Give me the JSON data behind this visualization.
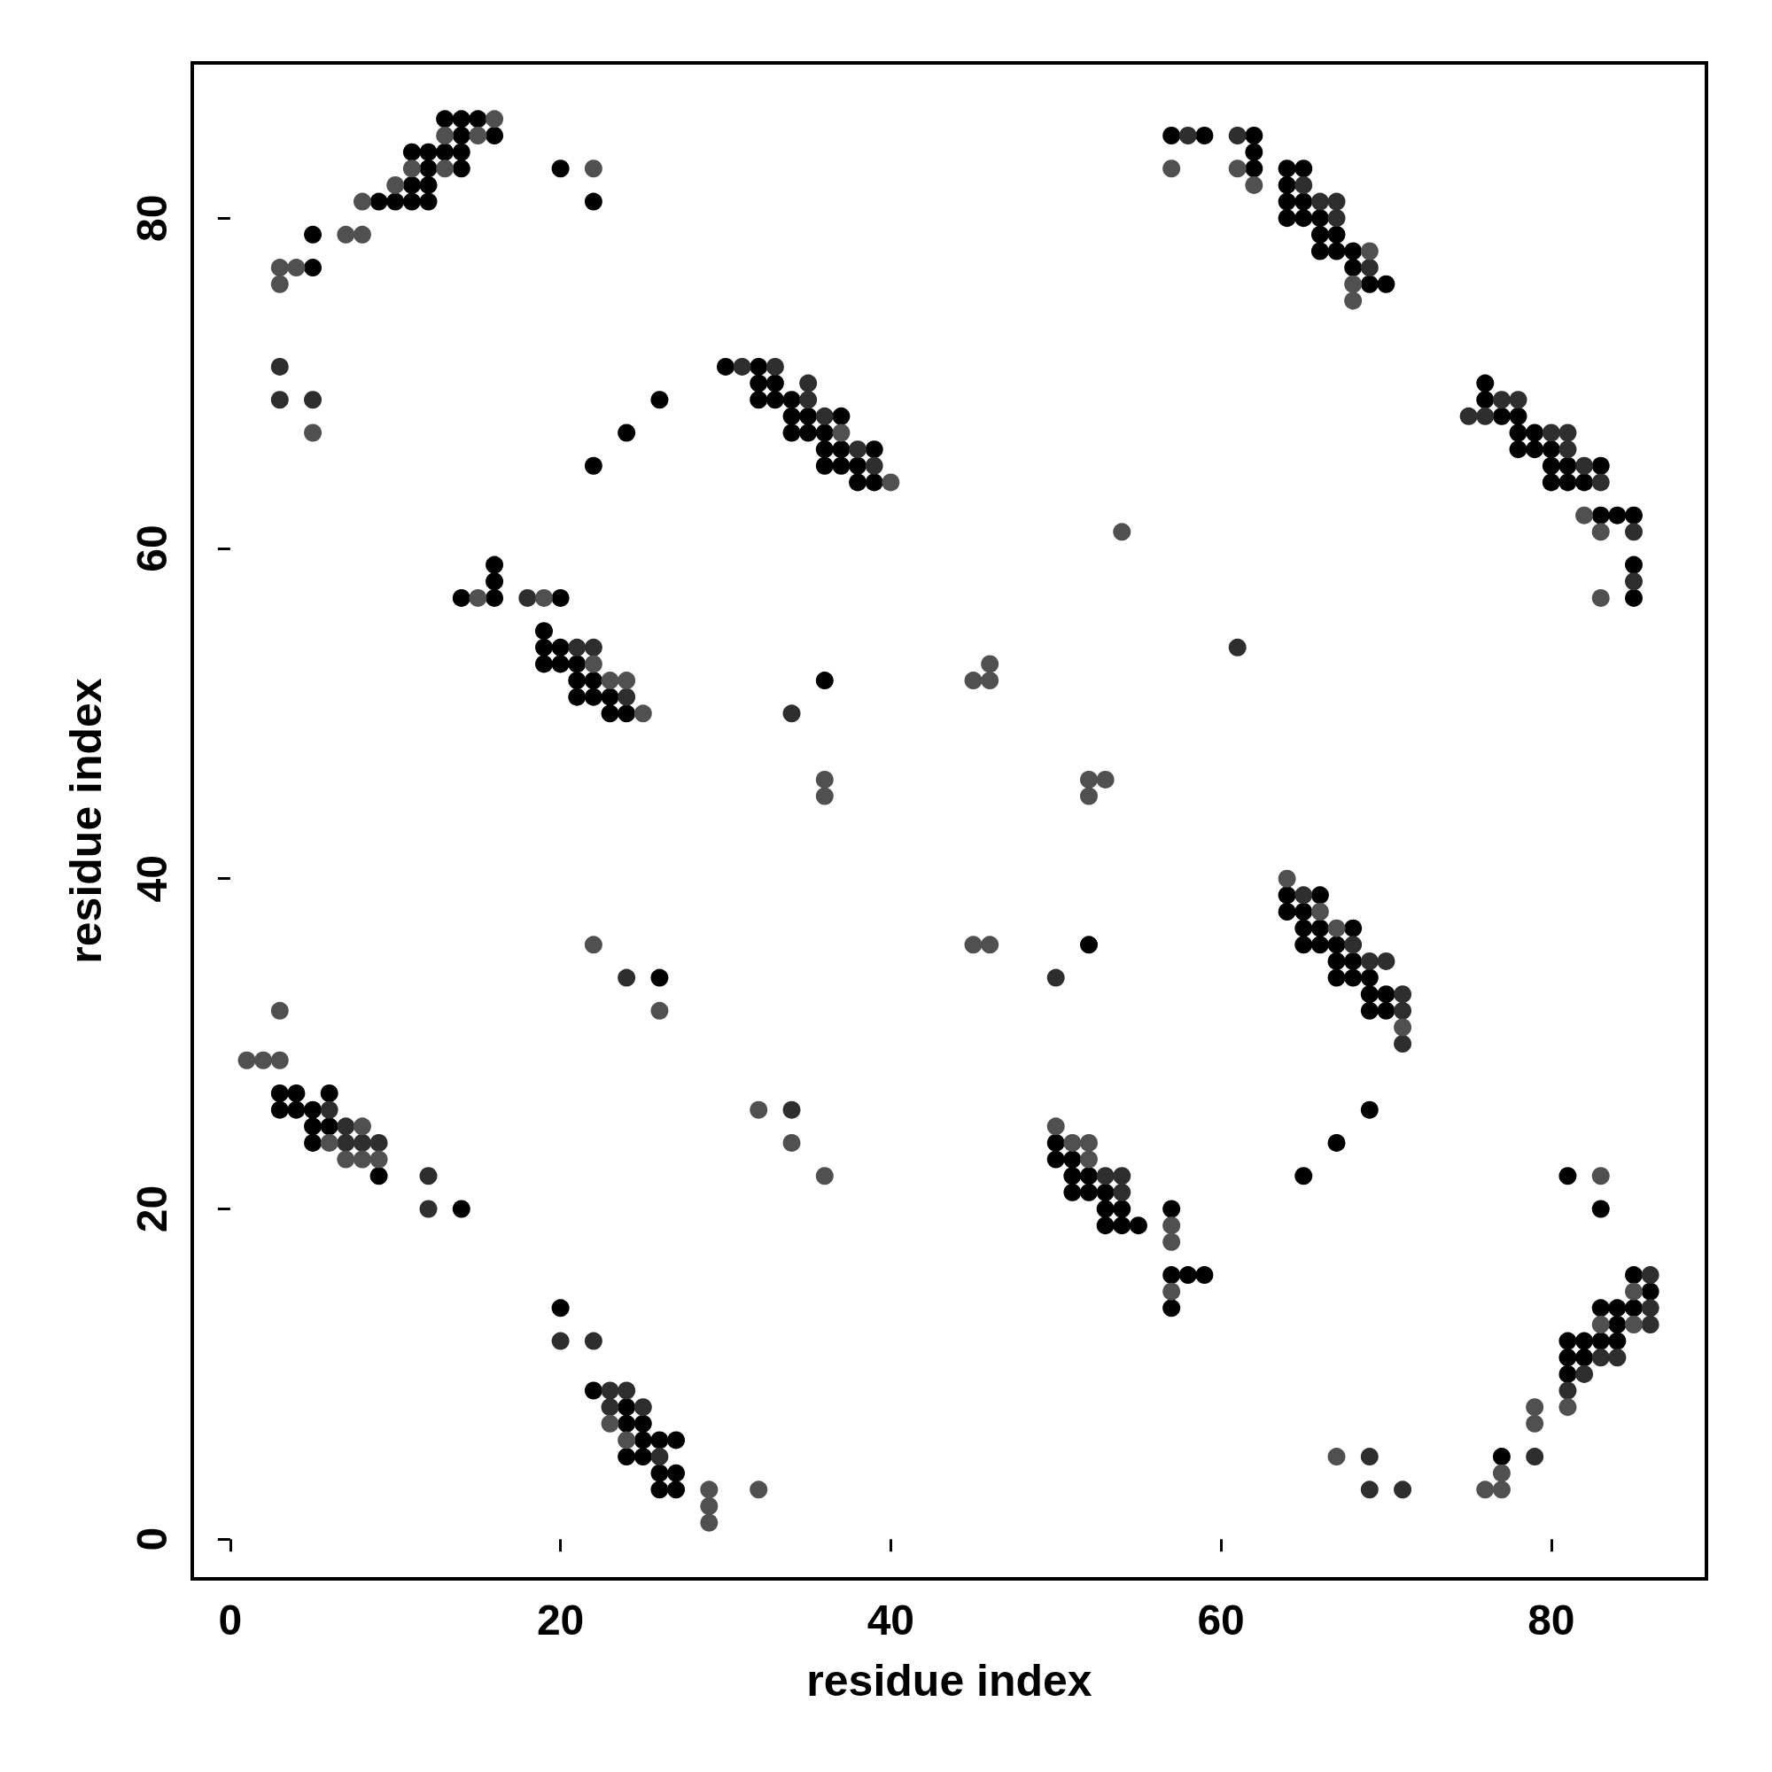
{
  "chart_data": {
    "type": "scatter",
    "xlabel": "residue index",
    "ylabel": "residue index",
    "xlim": [
      -2.3,
      89.4
    ],
    "ylim": [
      -2.4,
      89.4
    ],
    "xticks": [
      0,
      20,
      40,
      60,
      80
    ],
    "yticks": [
      0,
      20,
      40,
      60,
      80
    ],
    "marker": "circle",
    "series": [
      {
        "color": "#000000",
        "x": [
          13,
          14,
          15,
          14,
          16,
          11,
          12,
          13,
          14,
          12,
          14,
          20,
          11,
          12,
          9,
          10,
          11,
          12,
          22,
          5,
          5,
          30,
          32,
          32,
          33,
          32,
          33,
          34,
          26,
          34,
          35,
          37,
          34,
          35,
          36,
          24,
          36,
          37,
          39,
          36,
          37,
          38,
          22,
          38,
          39,
          57,
          59,
          62,
          62,
          62,
          64,
          65,
          64,
          64,
          65,
          64,
          65,
          66,
          66,
          67,
          66,
          67,
          68,
          68,
          69,
          70,
          76,
          76,
          77,
          78,
          78,
          79,
          78,
          79,
          80,
          80,
          81,
          83,
          80,
          81,
          82,
          83,
          84,
          85,
          85,
          85,
          16,
          16,
          14,
          16,
          20,
          19,
          19,
          20,
          19,
          20,
          21,
          21,
          22,
          36,
          21,
          22,
          23,
          23,
          24,
          64,
          66,
          64,
          65,
          65,
          66,
          68,
          65,
          66,
          67,
          52,
          67,
          68,
          67,
          68,
          69,
          26,
          69,
          70,
          69,
          70,
          3,
          4,
          6,
          3,
          4,
          5,
          69,
          5,
          6,
          5,
          50,
          67,
          50,
          51,
          9,
          51,
          52,
          65,
          81,
          51,
          52,
          53,
          14,
          53,
          54,
          57,
          83,
          53,
          54,
          55,
          57,
          58,
          59,
          85,
          86,
          57,
          83,
          84,
          85,
          20,
          84,
          81,
          82,
          83,
          84,
          81,
          82,
          81,
          22,
          24,
          24,
          25,
          25,
          26,
          27,
          77,
          24,
          25,
          26,
          27,
          26,
          27
        ],
        "values": [
          86,
          86,
          86,
          85,
          85,
          84,
          84,
          84,
          84,
          83,
          83,
          83,
          82,
          82,
          81,
          81,
          81,
          81,
          81,
          79,
          77,
          71,
          71,
          70,
          70,
          69,
          69,
          69,
          69,
          68,
          68,
          68,
          67,
          67,
          67,
          67,
          66,
          66,
          66,
          65,
          65,
          65,
          65,
          64,
          64,
          85,
          85,
          85,
          84,
          83,
          83,
          83,
          82,
          81,
          81,
          80,
          80,
          80,
          79,
          79,
          78,
          78,
          78,
          77,
          76,
          76,
          70,
          69,
          68,
          68,
          67,
          67,
          66,
          66,
          66,
          65,
          65,
          65,
          64,
          64,
          64,
          62,
          62,
          62,
          59,
          57,
          59,
          58,
          57,
          57,
          57,
          55,
          54,
          54,
          53,
          53,
          53,
          52,
          52,
          52,
          51,
          51,
          51,
          50,
          50,
          39,
          39,
          38,
          38,
          37,
          37,
          37,
          36,
          36,
          36,
          36,
          35,
          35,
          34,
          34,
          34,
          34,
          33,
          33,
          32,
          32,
          27,
          27,
          27,
          26,
          26,
          26,
          26,
          25,
          25,
          24,
          24,
          24,
          23,
          23,
          22,
          22,
          22,
          22,
          22,
          21,
          21,
          21,
          20,
          20,
          20,
          20,
          20,
          19,
          19,
          19,
          16,
          16,
          16,
          16,
          15,
          14,
          14,
          14,
          14,
          14,
          13,
          12,
          12,
          12,
          12,
          11,
          11,
          10,
          9,
          8,
          7,
          7,
          6,
          6,
          6,
          5,
          5,
          5,
          4,
          4,
          3,
          3
        ]
      },
      {
        "color": "#2e2e2e",
        "x": [
          3,
          3,
          5,
          31,
          33,
          35,
          35,
          36,
          38,
          39,
          58,
          61,
          65,
          66,
          67,
          67,
          69,
          77,
          78,
          75,
          76,
          80,
          81,
          81,
          82,
          83,
          85,
          85,
          61,
          18,
          21,
          22,
          24,
          34,
          65,
          68,
          69,
          70,
          24,
          50,
          71,
          71,
          71,
          6,
          34,
          7,
          7,
          8,
          9,
          12,
          53,
          54,
          54,
          12,
          86,
          86,
          86,
          20,
          22,
          83,
          84,
          82,
          81,
          23,
          24,
          23,
          25,
          79,
          69,
          26,
          69,
          71
        ],
        "values": [
          71,
          69,
          69,
          71,
          71,
          70,
          69,
          68,
          66,
          65,
          85,
          85,
          82,
          81,
          81,
          80,
          77,
          69,
          69,
          68,
          68,
          67,
          67,
          66,
          65,
          64,
          61,
          58,
          54,
          57,
          54,
          54,
          51,
          50,
          39,
          36,
          35,
          35,
          34,
          34,
          33,
          32,
          30,
          26,
          26,
          25,
          24,
          24,
          24,
          22,
          22,
          22,
          21,
          20,
          16,
          14,
          13,
          12,
          12,
          11,
          11,
          10,
          9,
          9,
          9,
          8,
          8,
          5,
          5,
          5,
          3,
          3
        ]
      },
      {
        "color": "#505050",
        "x": [
          16,
          13,
          15,
          11,
          13,
          22,
          10,
          8,
          7,
          8,
          3,
          4,
          3,
          5,
          37,
          40,
          57,
          61,
          62,
          69,
          68,
          68,
          82,
          83,
          54,
          83,
          15,
          19,
          22,
          23,
          24,
          45,
          46,
          46,
          25,
          36,
          52,
          53,
          36,
          52,
          64,
          66,
          67,
          22,
          45,
          46,
          26,
          3,
          71,
          1,
          2,
          3,
          32,
          8,
          50,
          6,
          34,
          51,
          52,
          7,
          8,
          9,
          52,
          36,
          83,
          57,
          57,
          57,
          85,
          83,
          85,
          79,
          81,
          79,
          23,
          24,
          67,
          77,
          76,
          77,
          29,
          32,
          29,
          29
        ],
        "values": [
          86,
          85,
          85,
          83,
          83,
          83,
          82,
          81,
          79,
          79,
          77,
          77,
          76,
          67,
          67,
          64,
          83,
          83,
          82,
          78,
          76,
          75,
          62,
          61,
          61,
          57,
          57,
          57,
          53,
          52,
          52,
          52,
          52,
          53,
          50,
          46,
          46,
          46,
          45,
          45,
          40,
          38,
          37,
          36,
          36,
          36,
          32,
          32,
          31,
          29,
          29,
          29,
          26,
          25,
          25,
          24,
          24,
          24,
          24,
          23,
          23,
          23,
          23,
          22,
          22,
          19,
          18,
          15,
          15,
          13,
          13,
          8,
          8,
          7,
          7,
          6,
          5,
          4,
          3,
          3,
          3,
          3,
          2,
          1
        ]
      }
    ]
  }
}
